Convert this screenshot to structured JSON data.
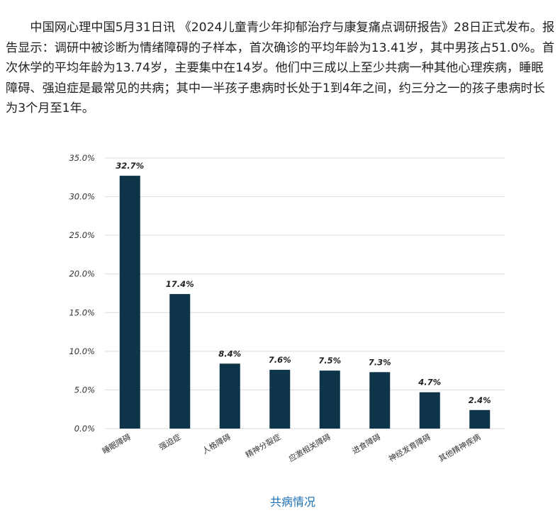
{
  "article": {
    "paragraph": "中国网心理中国5月31日讯 《2024儿童青少年抑郁治疗与康复痛点调研报告》28日正式发布。报告显示：调研中被诊断为情绪障碍的子样本，首次确诊的平均年龄为13.41岁，其中男孩占51.0%。首次休学的平均年龄为13.74岁，主要集中在14岁。他们中三成以上至少共病一种其他心理疾病，睡眠障碍、强迫症是最常见的共病；其中一半孩子患病时长处于1到4年之间，约三分之一的孩子患病时长为3个月至1年。"
  },
  "chart_data": {
    "type": "bar",
    "categories": [
      "睡眠障碍",
      "强迫症",
      "人格障碍",
      "精神分裂症",
      "应激相关障碍",
      "进食障碍",
      "神经发育障碍",
      "其他精神疾病"
    ],
    "values": [
      32.7,
      17.4,
      8.4,
      7.6,
      7.5,
      7.3,
      4.7,
      2.4
    ],
    "value_labels": [
      "32.7%",
      "17.4%",
      "8.4%",
      "7.6%",
      "7.5%",
      "7.3%",
      "4.7%",
      "2.4%"
    ],
    "ylim": [
      0,
      35
    ],
    "yticks": [
      0,
      5,
      10,
      15,
      20,
      25,
      30,
      35
    ],
    "ytick_labels": [
      "0.0%",
      "5.0%",
      "10.0%",
      "15.0%",
      "20.0%",
      "25.0%",
      "30.0%",
      "35.0%"
    ],
    "grid": true,
    "bar_color": "#0d3448",
    "grid_color": "#d9d9d9",
    "title": "",
    "xlabel": "",
    "ylabel": ""
  },
  "caption": "共病情况"
}
